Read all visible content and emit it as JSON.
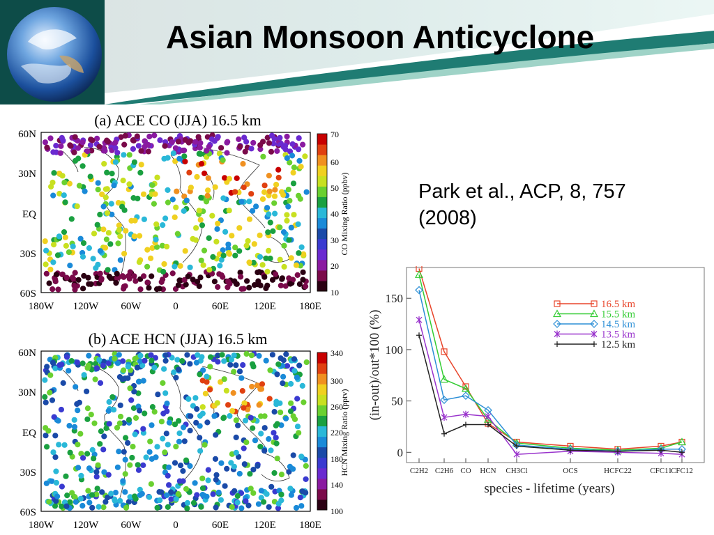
{
  "slide": {
    "title": "Asian Monsoon Anticyclone",
    "citation": "Park et al., ACP, 8, 757 (2008)"
  },
  "map_panels": [
    {
      "title": "(a) ACE CO (JJA)   16.5 km",
      "lat_labels": [
        "60N",
        "30N",
        "EQ",
        "30S",
        "60S"
      ],
      "lon_labels": [
        "180W",
        "120W",
        "60W",
        "0",
        "60E",
        "120E",
        "180E"
      ],
      "colorbar_label": "CO Mixing Ratio (ppbv)",
      "colorbar_ticks": [
        "70",
        "60",
        "50",
        "40",
        "30",
        "20",
        "10"
      ],
      "colorbar_range": [
        10,
        75
      ]
    },
    {
      "title": "(b) ACE HCN (JJA)   16.5 km",
      "lat_labels": [
        "60N",
        "30N",
        "EQ",
        "30S",
        "60S"
      ],
      "lon_labels": [
        "180W",
        "120W",
        "60W",
        "0",
        "60E",
        "120E",
        "180E"
      ],
      "colorbar_label": "HCN Mixing Ratio (pptv)",
      "colorbar_ticks": [
        "340",
        "300",
        "260",
        "220",
        "180",
        "140",
        "100"
      ],
      "colorbar_range": [
        100,
        350
      ]
    }
  ],
  "chart_data": {
    "type": "line",
    "xlabel": "species - lifetime (years)",
    "ylabel": "(in-out)/out*100 (%)",
    "ylim": [
      -10,
      180
    ],
    "yticks": [
      "0",
      "50",
      "100",
      "150"
    ],
    "xticklabels": [
      "C2H2",
      "C2H6",
      "CO",
      "HCN",
      "CH3Cl",
      "OCS",
      "HCFC22",
      "CFC11",
      "CFC12"
    ],
    "legend_position": "top-right",
    "series": [
      {
        "name": "16.5 km",
        "color": "#e8452b",
        "marker": "square",
        "values": [
          179,
          98,
          64,
          28,
          10,
          6,
          3,
          6,
          10
        ]
      },
      {
        "name": "15.5 km",
        "color": "#33cc33",
        "marker": "triangle",
        "values": [
          173,
          71,
          62,
          32,
          9,
          4,
          2,
          4,
          10
        ]
      },
      {
        "name": "14.5 km",
        "color": "#2c8fd6",
        "marker": "diamond",
        "values": [
          158,
          51,
          55,
          41,
          7,
          3,
          1,
          3,
          3
        ]
      },
      {
        "name": "13.5 km",
        "color": "#9933cc",
        "marker": "star",
        "values": [
          129,
          34,
          37,
          35,
          -2,
          1,
          0,
          -1,
          -2
        ]
      },
      {
        "name": "12.5 km",
        "color": "#222222",
        "marker": "plus",
        "values": [
          114,
          18,
          27,
          27,
          6,
          2,
          1,
          2,
          0
        ]
      }
    ]
  }
}
